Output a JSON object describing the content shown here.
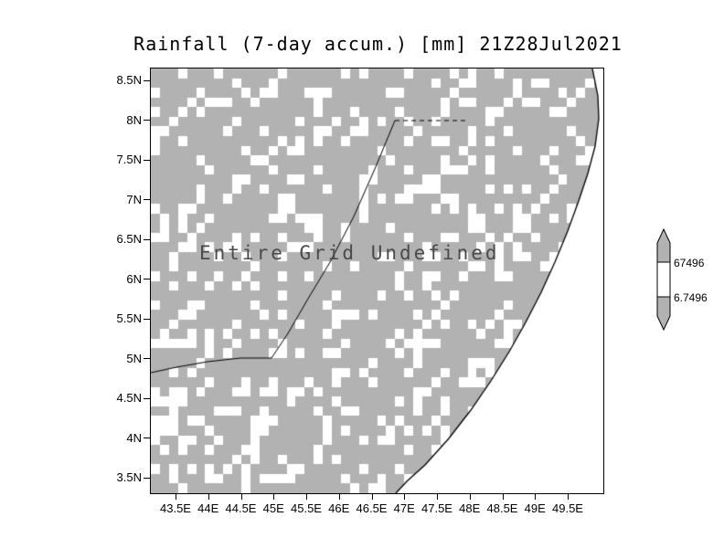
{
  "title": "Rainfall (7-day accum.) [mm] 21Z28Jul2021",
  "annotation": "Entire Grid Undefined",
  "axes": {
    "y_ticks": [
      "8.5N",
      "8N",
      "7.5N",
      "7N",
      "6.5N",
      "6N",
      "5.5N",
      "5N",
      "4.5N",
      "4N",
      "3.5N"
    ],
    "x_ticks": [
      "43.5E",
      "44E",
      "44.5E",
      "45E",
      "45.5E",
      "46E",
      "46.5E",
      "47E",
      "47.5E",
      "48E",
      "48.5E",
      "49E",
      "49.5E"
    ]
  },
  "colorbar": {
    "labels": [
      "67496",
      "6.7496"
    ],
    "values": [
      67496,
      6.7496
    ]
  },
  "colors": {
    "land_gray": "#b2b2b2",
    "ocean_white": "#ffffff",
    "line_black": "#000000",
    "message_gray": "#4a4a4a"
  },
  "grid": {
    "cols": 50,
    "rows": 44,
    "seed": 1337,
    "base_p": 0.17,
    "streak_p": 0.55,
    "streak2_p": 0.3,
    "streak_mod": 7
  },
  "map": {
    "coastline": [
      [
        483,
        0
      ],
      [
        489,
        30
      ],
      [
        490,
        55
      ],
      [
        486,
        85
      ],
      [
        478,
        115
      ],
      [
        468,
        145
      ],
      [
        456,
        178
      ],
      [
        442,
        212
      ],
      [
        427,
        245
      ],
      [
        410,
        278
      ],
      [
        392,
        310
      ],
      [
        372,
        342
      ],
      [
        350,
        374
      ],
      [
        326,
        405
      ],
      [
        300,
        434
      ],
      [
        280,
        452
      ],
      [
        268,
        465
      ]
    ],
    "border_solid": [
      [
        0,
        333
      ],
      [
        28,
        327
      ],
      [
        62,
        321
      ],
      [
        98,
        317
      ],
      [
        132,
        317
      ],
      [
        150,
        290
      ],
      [
        172,
        252
      ],
      [
        196,
        212
      ],
      [
        222,
        162
      ],
      [
        245,
        110
      ],
      [
        267,
        57
      ]
    ],
    "border_dashed": [
      [
        267,
        57
      ],
      [
        348,
        57
      ]
    ]
  },
  "chart_data": {
    "type": "heatmap",
    "title": "Rainfall (7-day accum.) [mm] 21Z28Jul2021",
    "units": "mm",
    "x_tick_labels": [
      "43.5E",
      "44E",
      "44.5E",
      "45E",
      "45.5E",
      "46E",
      "46.5E",
      "47E",
      "47.5E",
      "48E",
      "48.5E",
      "49E",
      "49.5E"
    ],
    "y_tick_labels": [
      "8.5N",
      "8N",
      "7.5N",
      "7N",
      "6.5N",
      "6N",
      "5.5N",
      "5N",
      "4.5N",
      "4N",
      "3.5N"
    ],
    "colorbar_levels": [
      6.7496,
      67496
    ],
    "colorbar_tick_labels": [
      "67496",
      "6.7496"
    ],
    "legend_position": "right",
    "grid": "off",
    "status_message": "Entire Grid Undefined",
    "values": "none — entire grid undefined; shading shows gray land mask with white undefined cells and white ocean"
  }
}
